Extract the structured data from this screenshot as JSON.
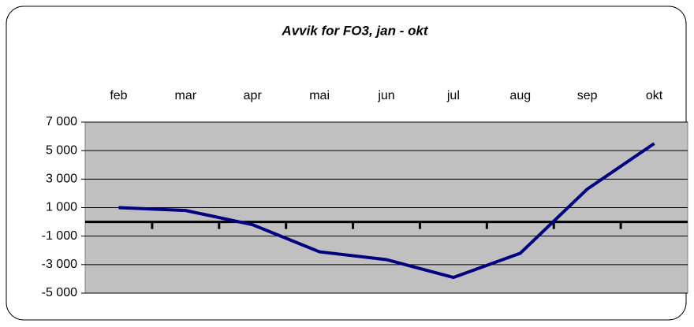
{
  "chart_data": {
    "type": "line",
    "title": "Avvik for FO3, jan - okt",
    "categories": [
      "feb",
      "mar",
      "apr",
      "mai",
      "jun",
      "jul",
      "aug",
      "sep",
      "okt"
    ],
    "series": [
      {
        "name": "FO3",
        "color": "#000080",
        "values": [
          1000,
          800,
          -200,
          -2100,
          -2650,
          -3900,
          -2200,
          2300,
          5500
        ]
      }
    ],
    "ylim": [
      -5000,
      7000
    ],
    "yticks": [
      {
        "value": -5000,
        "label": "-5 000"
      },
      {
        "value": -3000,
        "label": "-3 000"
      },
      {
        "value": -1000,
        "label": "-1 000"
      },
      {
        "value": 1000,
        "label": "1 000"
      },
      {
        "value": 3000,
        "label": "3 000"
      },
      {
        "value": 5000,
        "label": "5 000"
      },
      {
        "value": 7000,
        "label": "7 000"
      }
    ],
    "grid": true,
    "plot_background": "#c0c0c0"
  }
}
